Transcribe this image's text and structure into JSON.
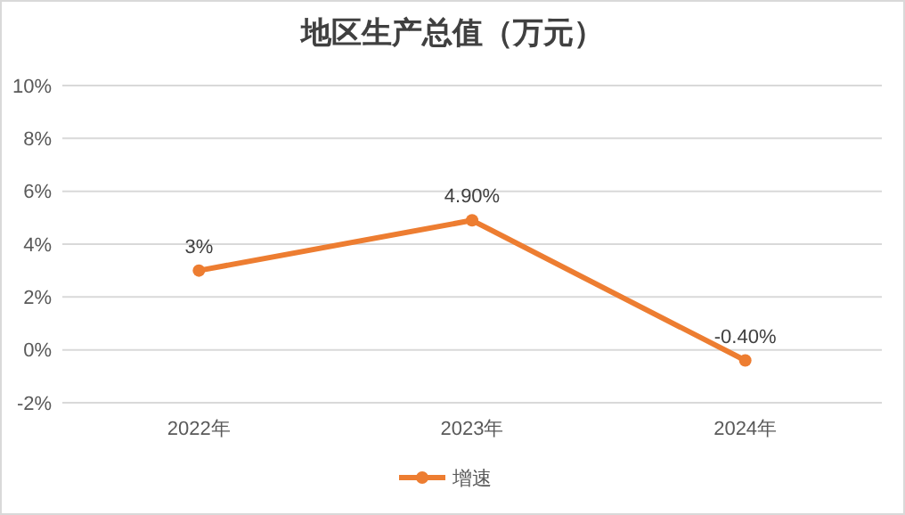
{
  "chart_data": {
    "type": "line",
    "title": "地区生产总值（万元）",
    "categories": [
      "2022年",
      "2023年",
      "2024年"
    ],
    "series": [
      {
        "name": "增速",
        "color": "#ed7d31",
        "values": [
          3,
          4.9,
          -0.4
        ],
        "value_labels": [
          "3%",
          "4.90%",
          "-0.40%"
        ]
      }
    ],
    "ylim": [
      -2,
      10
    ],
    "yticks": [
      {
        "value": -2,
        "label": "-2%"
      },
      {
        "value": 0,
        "label": "0%"
      },
      {
        "value": 2,
        "label": "2%"
      },
      {
        "value": 4,
        "label": "4%"
      },
      {
        "value": 6,
        "label": "6%"
      },
      {
        "value": 8,
        "label": "8%"
      },
      {
        "value": 10,
        "label": "10%"
      }
    ],
    "grid": "y",
    "legend": "bottom",
    "marker": "circle",
    "line_style": "solid"
  }
}
